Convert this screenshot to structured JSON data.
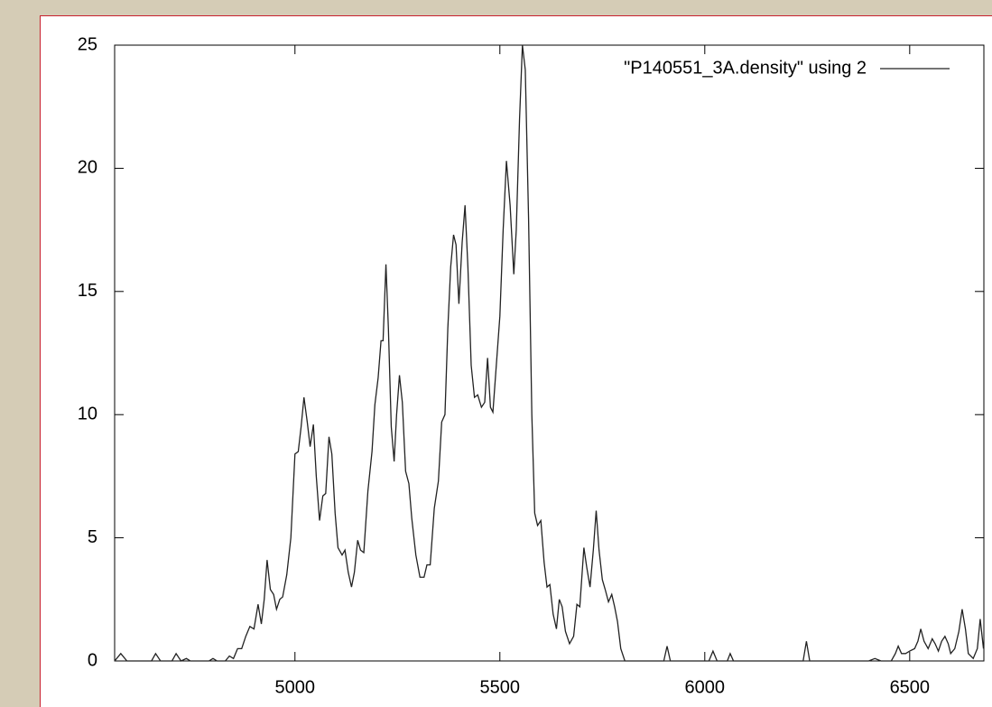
{
  "chart_data": {
    "type": "line",
    "x": [
      4560,
      4575,
      4590,
      4650,
      4660,
      4672,
      4700,
      4710,
      4722,
      4735,
      4745,
      4790,
      4800,
      4810,
      4830,
      4840,
      4850,
      4860,
      4870,
      4880,
      4890,
      4900,
      4910,
      4918,
      4925,
      4932,
      4940,
      4948,
      4955,
      4963,
      4970,
      4980,
      4990,
      5000,
      5008,
      5015,
      5022,
      5030,
      5037,
      5045,
      5052,
      5060,
      5068,
      5075,
      5083,
      5090,
      5098,
      5105,
      5115,
      5122,
      5130,
      5138,
      5145,
      5153,
      5160,
      5168,
      5178,
      5188,
      5195,
      5203,
      5210,
      5215,
      5222,
      5228,
      5235,
      5242,
      5248,
      5255,
      5262,
      5270,
      5278,
      5285,
      5295,
      5305,
      5315,
      5322,
      5330,
      5340,
      5350,
      5358,
      5366,
      5373,
      5380,
      5387,
      5393,
      5400,
      5408,
      5415,
      5422,
      5430,
      5438,
      5446,
      5455,
      5463,
      5470,
      5477,
      5483,
      5490,
      5500,
      5508,
      5516,
      5525,
      5534,
      5540,
      5548,
      5555,
      5562,
      5570,
      5578,
      5585,
      5592,
      5600,
      5608,
      5615,
      5622,
      5630,
      5638,
      5645,
      5652,
      5660,
      5670,
      5680,
      5688,
      5695,
      5705,
      5712,
      5720,
      5728,
      5735,
      5742,
      5750,
      5757,
      5765,
      5773,
      5780,
      5787,
      5795,
      5805,
      5900,
      5908,
      5916,
      6010,
      6020,
      6030,
      6055,
      6062,
      6070,
      6240,
      6248,
      6256,
      6400,
      6415,
      6430,
      6455,
      6465,
      6472,
      6480,
      6490,
      6500,
      6512,
      6520,
      6527,
      6535,
      6545,
      6555,
      6562,
      6570,
      6578,
      6586,
      6594,
      6600,
      6610,
      6620,
      6628,
      6636,
      6643,
      6655,
      6665,
      6672,
      6680
    ],
    "series": [
      {
        "name": "\"P140551_3A.density\" using 2",
        "color": "#222222",
        "values": [
          0,
          0.3,
          0,
          0,
          0.3,
          0,
          0,
          0.3,
          0,
          0.1,
          0,
          0,
          0.1,
          0,
          0,
          0.2,
          0.1,
          0.5,
          0.5,
          1.0,
          1.4,
          1.3,
          2.3,
          1.5,
          2.5,
          4.1,
          2.9,
          2.7,
          2.1,
          2.5,
          2.6,
          3.5,
          5.0,
          8.4,
          8.5,
          9.5,
          10.7,
          9.7,
          8.7,
          9.6,
          7.5,
          5.7,
          6.7,
          6.8,
          9.1,
          8.4,
          6.0,
          4.6,
          4.3,
          4.5,
          3.6,
          3.0,
          3.6,
          4.9,
          4.5,
          4.4,
          6.9,
          8.5,
          10.4,
          11.5,
          13.0,
          13.0,
          16.1,
          13.5,
          9.5,
          8.1,
          10.0,
          11.6,
          10.5,
          7.7,
          7.2,
          5.8,
          4.3,
          3.4,
          3.4,
          3.9,
          3.9,
          6.2,
          7.3,
          9.7,
          10.0,
          13.5,
          16.0,
          17.3,
          16.9,
          14.5,
          17.0,
          18.5,
          16.0,
          12.0,
          10.7,
          10.8,
          10.3,
          10.5,
          12.3,
          10.3,
          10.1,
          11.7,
          14.0,
          17.5,
          20.3,
          18.5,
          15.7,
          17.5,
          22.0,
          25,
          24,
          18,
          10,
          6.0,
          5.5,
          5.7,
          4.0,
          3.0,
          3.1,
          1.9,
          1.3,
          2.5,
          2.2,
          1.2,
          0.7,
          1.0,
          2.3,
          2.2,
          4.6,
          3.8,
          3.0,
          4.5,
          6.1,
          4.5,
          3.3,
          2.9,
          2.4,
          2.7,
          2.2,
          1.6,
          0.5,
          0,
          0,
          0.6,
          0,
          0,
          0.4,
          0,
          0,
          0.3,
          0,
          0,
          0.8,
          0,
          0,
          0.1,
          0,
          0,
          0.3,
          0.6,
          0.3,
          0.3,
          0.4,
          0.5,
          0.8,
          1.3,
          0.8,
          0.5,
          0.9,
          0.7,
          0.4,
          0.8,
          1.0,
          0.7,
          0.3,
          0.5,
          1.2,
          2.1,
          1.3,
          0.3,
          0.1,
          0.5,
          1.7,
          0.5
        ]
      }
    ],
    "xlim": [
      4560,
      6681
    ],
    "ylim": [
      0,
      25
    ],
    "xticks": [
      5000,
      5500,
      6000,
      6500
    ],
    "yticks": [
      0,
      5,
      10,
      15,
      20,
      25
    ],
    "legend": "top right"
  }
}
